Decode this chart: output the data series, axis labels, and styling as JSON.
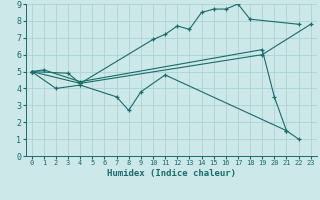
{
  "xlabel": "Humidex (Indice chaleur)",
  "bg_color": "#cce8e8",
  "grid_color": "#aad4d4",
  "line_color": "#1a6b6b",
  "xlim": [
    -0.5,
    23.5
  ],
  "ylim": [
    0,
    9
  ],
  "lines": [
    {
      "comment": "Line 1: goes from 0->5, 1->5.1, 4->4.4, then up to 19->6.3, then down to 20->3.5, 21->1.5, 22->1.0",
      "x": [
        0,
        1,
        4,
        19,
        20,
        21,
        22
      ],
      "y": [
        5.0,
        5.1,
        4.4,
        6.3,
        3.5,
        1.5,
        1.0
      ]
    },
    {
      "comment": "Line 2: zigzag 0->5, 2->4, 4->4.2, 7->3.5, 8->2.7, 9->3.8, 11->4.8, then down 21->1.5",
      "x": [
        0,
        2,
        4,
        7,
        8,
        9,
        11,
        21
      ],
      "y": [
        5.0,
        4.0,
        4.2,
        3.5,
        2.7,
        3.8,
        4.8,
        1.5
      ]
    },
    {
      "comment": "Line 3: rises from 0->5, 3->4.9, 4->4.3, 10->6.9, 11->7.2, 12->7.7, 13->7.5, 14->8.5, 15->8.7, 16->8.7, 17->9.0, 18->8.1, 22->7.8",
      "x": [
        0,
        3,
        4,
        10,
        11,
        12,
        13,
        14,
        15,
        16,
        17,
        18,
        22
      ],
      "y": [
        5.0,
        4.9,
        4.3,
        6.9,
        7.2,
        7.7,
        7.5,
        8.5,
        8.7,
        8.7,
        9.0,
        8.1,
        7.8
      ]
    },
    {
      "comment": "Line 4: nearly straight trend 0->5, 4->4.3, 19->6.05, 23->7.8",
      "x": [
        0,
        4,
        19,
        23
      ],
      "y": [
        5.0,
        4.3,
        6.0,
        7.8
      ]
    }
  ]
}
